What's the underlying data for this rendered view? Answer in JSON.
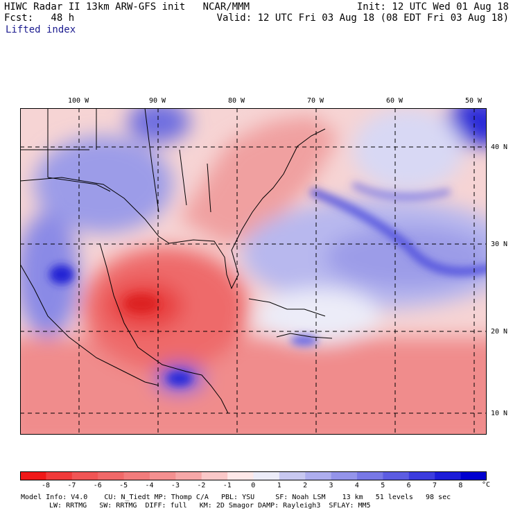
{
  "header": {
    "left_line1": "HIWC Radar II 13km ARW-GFS init   NCAR/MMM",
    "left_line2": "Fcst:   48 h",
    "right_line1": "Init: 12 UTC Wed 01 Aug 18",
    "right_line2": "Valid: 12 UTC Fri 03 Aug 18 (08 EDT Fri 03 Aug 18)",
    "field": "Lifted index"
  },
  "longitude_labels": [
    "100 W",
    "90 W",
    "80 W",
    "70 W",
    "60 W",
    "50 W"
  ],
  "latitude_labels": [
    "40 N",
    "30 N",
    "20 N",
    "10 N"
  ],
  "colorbar": {
    "labels": [
      "-8",
      "-7",
      "-6",
      "-5",
      "-4",
      "-3",
      "-2",
      "-1",
      "0",
      "1",
      "2",
      "3",
      "4",
      "5",
      "6",
      "7",
      "8"
    ],
    "unit": "°C",
    "colors": [
      "#f01818",
      "#f03a3a",
      "#f05555",
      "#f06868",
      "#f27c7c",
      "#f49090",
      "#f6a8a8",
      "#fac8c8",
      "#fde8e8",
      "#ececf8",
      "#c8c8f0",
      "#aeaeee",
      "#9494ea",
      "#7878e6",
      "#5c5ce2",
      "#3c3cde",
      "#1c1cd8",
      "#0000d0"
    ]
  },
  "footer": {
    "line1": "Model Info: V4.0    CU: N_Tiedt MP: Thomp C/A   PBL: YSU     SF: Noah LSM    13 km   51 levels   98 sec",
    "line2": "LW: RRTMG   SW: RRTMG  DIFF: full   KM: 2D Smagor DAMP: Rayleigh3  SFLAY: MM5"
  }
}
